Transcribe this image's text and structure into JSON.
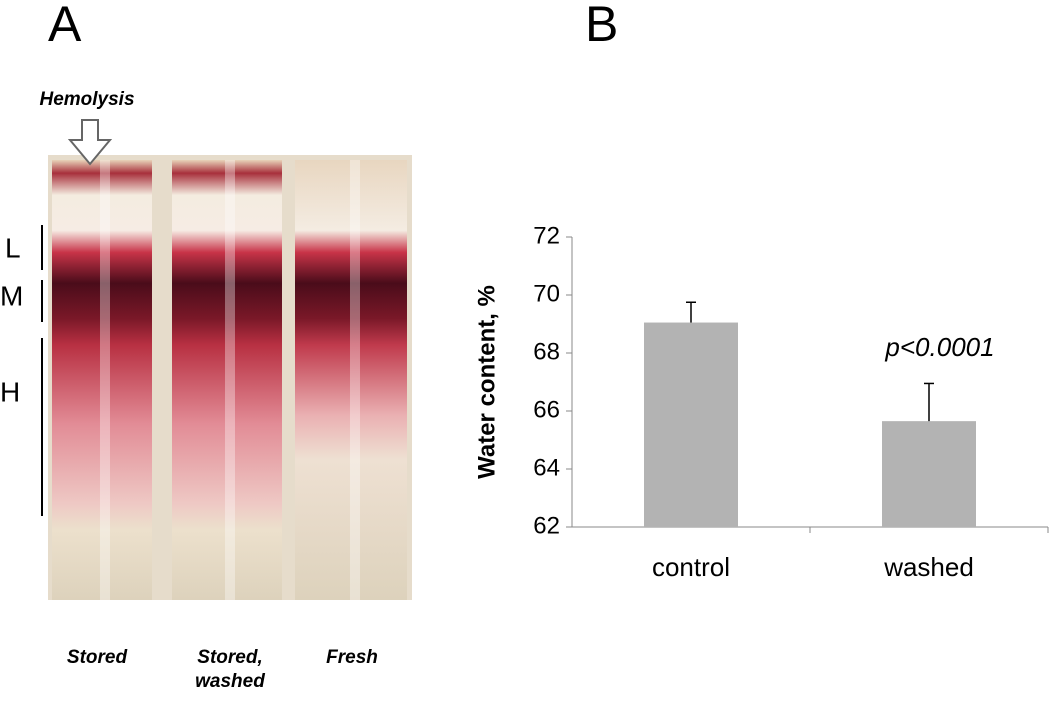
{
  "panels": {
    "a": "A",
    "b": "B"
  },
  "photo": {
    "arrow_label": "Hemolysis",
    "bands": [
      "L",
      "M",
      "H"
    ],
    "tubes": [
      "Stored",
      "Stored, washed",
      "Fresh"
    ]
  },
  "chart_data": {
    "type": "bar",
    "categories": [
      "control",
      "washed"
    ],
    "values": [
      69.05,
      65.65
    ],
    "errors": [
      0.7,
      1.3
    ],
    "color": "#b3b3b3",
    "ylim": [
      62,
      72
    ],
    "yticks": [
      62,
      64,
      66,
      68,
      70,
      72
    ],
    "y_label": "Water content, %",
    "annotation": "p<0.0001"
  }
}
